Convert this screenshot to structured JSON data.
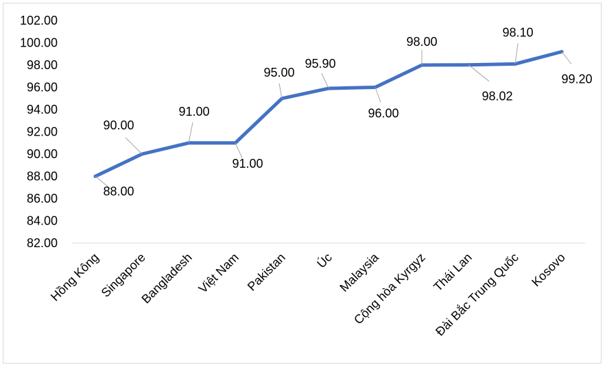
{
  "chart_data": {
    "type": "line",
    "title": "",
    "xlabel": "",
    "ylabel": "",
    "categories": [
      "Hồng Kông",
      "Singapore",
      "Bangladesh",
      "Việt Nam",
      "Pakistan",
      "Úc",
      "Malaysia",
      "Cộng hòa Kyrgyz",
      "Thái Lan",
      "Đài Bắc Trung Quốc",
      "Kosovo"
    ],
    "series": [
      {
        "values": [
          88.0,
          90.0,
          91.0,
          91.0,
          95.0,
          95.9,
          96.0,
          98.0,
          98.02,
          98.1,
          99.2
        ],
        "data_labels": [
          "88.00",
          "90.00",
          "91.00",
          "91.00",
          "95.00",
          "95.90",
          "96.00",
          "98.00",
          "98.02",
          "98.10",
          "99.20"
        ],
        "color": "#4472c4"
      }
    ],
    "ylim": [
      82,
      102
    ],
    "y_ticks": [
      82,
      84,
      86,
      88,
      90,
      92,
      94,
      96,
      98,
      100,
      102
    ],
    "y_tick_labels": [
      "82.00",
      "84.00",
      "86.00",
      "88.00",
      "90.00",
      "92.00",
      "94.00",
      "96.00",
      "98.00",
      "100.00",
      "102.00"
    ],
    "grid": false,
    "legend": "none",
    "axis_color": "#d9d9d9"
  }
}
